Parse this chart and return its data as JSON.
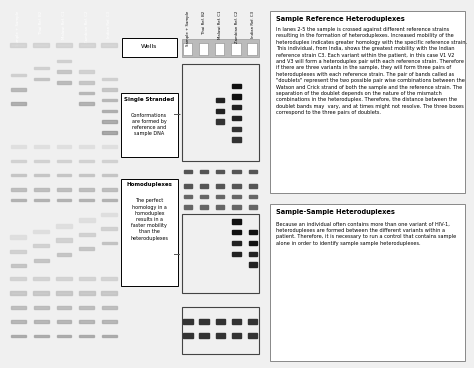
{
  "background_color": "#f0f0f0",
  "gel_bg": "#111111",
  "lane_labels": [
    "Sample + Sample",
    "Thai Ref. B2",
    "Malawi Ref. C1",
    "Zambian Ref. C2",
    "Indian Ref. C3"
  ],
  "wells_label": "Wells",
  "box1_title": "Single Stranded",
  "box1_text": "Conformations\nare formed by\nreference and\nsample DNA",
  "box2_title": "Homoduplexes",
  "box2_text": "The perfect\nhomology in a\nhomoduplex\nresults in a\nfaster mobility\nthan the\nheteroduplexes",
  "ref_title": "Sample Reference Heteroduplexes",
  "ref_text": "In lanes 2-5 the sample is crossed against different reference strains\nresulting in the formation of heteroduplexes. Increased mobility of the\nheteroduplex indicates greater homology with the specific reference strain.\nThis individual, from India, shows the greatest mobility with the Indian\nreference strain C3. Each variant within the patient, in this case V1 V2\nand V3 will form a heteroduplex pair with each reference strain. Therefore\nif there are three variants in the sample, they will form three pairs of\nheteroduplexes with each reference strain. The pair of bands called as\n\"doublets\" represent the two possible pair wise combinations between the\nWatson and Crick strand of both the sample and the reference strain. The\nseparation of the doublet depends on the nature of the mismatch\ncombinations in the heteroduplex. Therefore, the distance between the\ndoublet bands may  vary, and at times might not resolve. The three boxes\ncorrespond to the three pairs of doublets.",
  "ss_title": "Sample-Sample Heteroduplexes",
  "ss_text": "Because an individual often contains more than one variant of HIV-1,\nheteroduplexes are formed between the different variants within a\npatient. Therefore, it is necessary to run a control that contains sample\nalone in order to identify sample sample heteroduplexes."
}
